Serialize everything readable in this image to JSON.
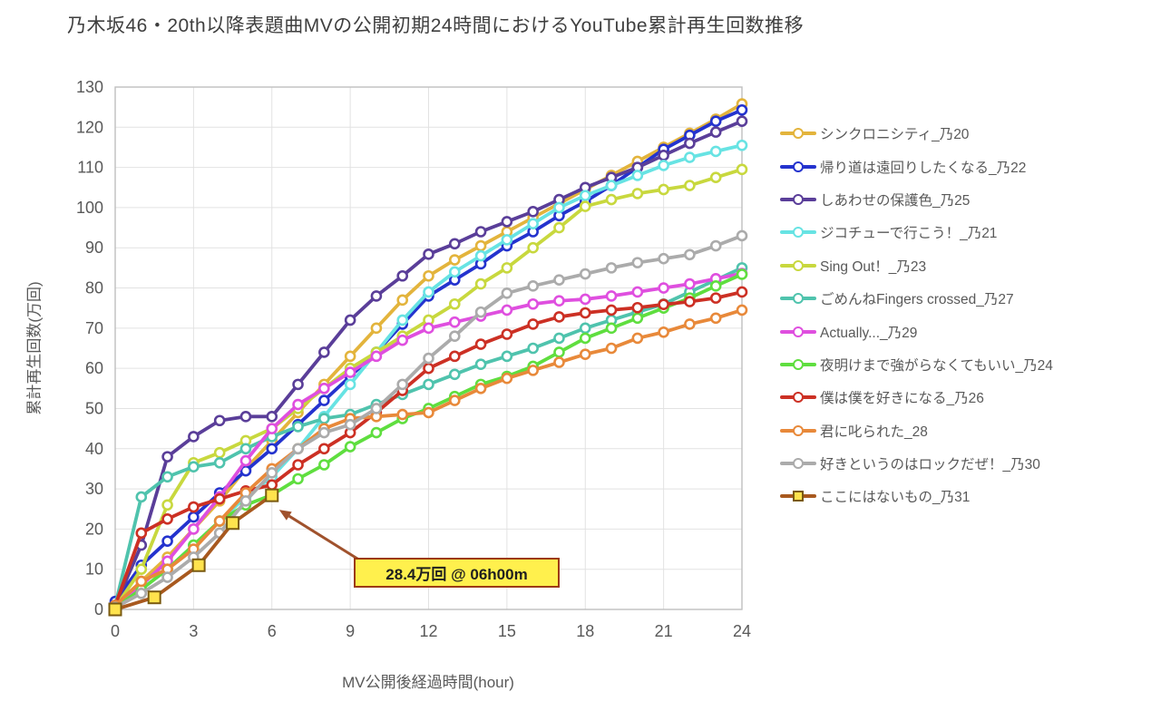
{
  "title": "乃木坂46・20th以降表題曲MVの公開初期24時間におけるYouTube累計再生回数推移",
  "colors": {
    "grid": "#e2e2e2",
    "axis_border": "#bfbfbf",
    "tick_text": "#595959",
    "title_text": "#3f3f3f",
    "annotation_bg": "#fff04d",
    "annotation_border": "#9c3a12",
    "arrow": "#a0522d",
    "square_marker_fill": "#ffe34d",
    "square_marker_stroke": "#7a5a10"
  },
  "chart_data": {
    "type": "line",
    "title": "乃木坂46・20th以降表題曲MVの公開初期24時間におけるYouTube累計再生回数推移",
    "xlabel": "MV公開後経過時間(hour)",
    "ylabel": "累計再生回数(万回)",
    "xlim": [
      0,
      24
    ],
    "ylim": [
      0,
      130
    ],
    "xticks": [
      0,
      3,
      6,
      9,
      12,
      15,
      18,
      21,
      24
    ],
    "yticks": [
      0,
      10,
      20,
      30,
      40,
      50,
      60,
      70,
      80,
      90,
      100,
      110,
      120,
      130
    ],
    "grid": true,
    "legend_position": "right",
    "annotation": {
      "text": "28.4万回 @ 06h00m",
      "target_x": 6,
      "target_y": 28.4
    },
    "series": [
      {
        "name": "シンクロニシティ_乃20",
        "color": "#e3b43c",
        "marker": "circle",
        "values": [
          1,
          7,
          13,
          20,
          27,
          35,
          42,
          49,
          56,
          63,
          70,
          77,
          83,
          87,
          90.5,
          94,
          97.5,
          101,
          104.5,
          108,
          111.5,
          115,
          118.5,
          122,
          125.8
        ]
      },
      {
        "name": "帰り道は遠回りしたくなる_乃22",
        "color": "#2433ce",
        "marker": "circle",
        "values": [
          2,
          11,
          17,
          23,
          29,
          34.5,
          40,
          46,
          52,
          58,
          64,
          71,
          78,
          82,
          86,
          90.5,
          94,
          98,
          101.5,
          105.5,
          110,
          114.5,
          118,
          121.5,
          124.3
        ]
      },
      {
        "name": "しあわせの保護色_乃25",
        "color": "#5a3e99",
        "marker": "circle",
        "values": [
          1,
          16,
          38,
          43,
          47,
          48,
          48,
          56,
          64,
          72,
          78,
          83,
          88.4,
          91,
          94,
          96.5,
          99,
          102,
          105,
          107.5,
          110,
          113,
          116,
          118.8,
          121.5
        ]
      },
      {
        "name": "ジコチューで行こう！_乃21",
        "color": "#67e3e3",
        "marker": "circle",
        "values": [
          1,
          5,
          10,
          16,
          22,
          28,
          33,
          40,
          48,
          56,
          64,
          72,
          79,
          84,
          88,
          92,
          96,
          100,
          103,
          105.5,
          108,
          110.5,
          112.5,
          114,
          115.5
        ]
      },
      {
        "name": "Sing Out！_乃23",
        "color": "#c8d83e",
        "marker": "circle",
        "values": [
          0.5,
          10,
          26,
          36.5,
          39,
          42,
          45,
          50,
          55,
          60,
          64,
          68,
          72,
          76,
          81,
          85,
          90,
          95,
          100.3,
          102,
          103.5,
          104.5,
          105.5,
          107.5,
          109.5
        ]
      },
      {
        "name": "ごめんねFingers crossed_乃27",
        "color": "#4fc3ad",
        "marker": "circle",
        "values": [
          1,
          28,
          33,
          35.5,
          36.5,
          40,
          43,
          45.5,
          47.5,
          48.5,
          51,
          53.5,
          56,
          58.5,
          61,
          63,
          65,
          67.5,
          70,
          72,
          74,
          76,
          79,
          82,
          85
        ]
      },
      {
        "name": "Actually..._乃29",
        "color": "#df4fdf",
        "marker": "circle",
        "values": [
          1,
          6,
          12,
          20,
          28,
          37,
          45,
          51,
          55,
          59,
          63,
          67,
          70,
          71.5,
          73,
          74.5,
          76,
          76.8,
          77.2,
          78,
          79,
          80,
          81,
          82.3,
          83.6
        ]
      },
      {
        "name": "夜明けまで強がらなくてもいい_乃24",
        "color": "#5fde3f",
        "marker": "circle",
        "values": [
          0.5,
          5,
          10,
          16,
          22,
          26,
          28.5,
          32.5,
          36,
          40.5,
          44,
          47.5,
          50,
          53,
          56,
          58,
          60.5,
          64,
          67.5,
          70,
          72.5,
          75,
          77.5,
          80.5,
          83.4
        ]
      },
      {
        "name": "僕は僕を好きになる_乃26",
        "color": "#cc3024",
        "marker": "circle",
        "values": [
          1,
          19,
          22.5,
          25.5,
          27.5,
          29.5,
          31,
          36,
          40,
          44,
          49,
          54.5,
          60,
          63,
          66,
          68.5,
          71,
          72.8,
          73.8,
          74.5,
          75.1,
          75.9,
          76.6,
          77.5,
          79
        ]
      },
      {
        "name": "君に叱られた_28",
        "color": "#e8893a",
        "marker": "circle",
        "values": [
          1,
          7,
          10,
          15,
          22,
          29,
          35,
          40,
          45,
          47.5,
          48,
          48.5,
          49,
          52,
          55,
          57.5,
          59.5,
          61.5,
          63.5,
          65,
          67.5,
          69,
          71,
          72.5,
          74.5
        ]
      },
      {
        "name": "好きというのはロックだぜ！_乃30",
        "color": "#ababab",
        "marker": "circle",
        "values": [
          0.5,
          4,
          8,
          13,
          19,
          27,
          34,
          40,
          44,
          46,
          50,
          56,
          62.5,
          68,
          74,
          78.7,
          80.5,
          82,
          83.5,
          85,
          86.3,
          87.3,
          88.3,
          90.5,
          93
        ]
      },
      {
        "name": "ここにはないもの_乃31",
        "color": "#a8591f",
        "marker": "square",
        "x": [
          0,
          1.5,
          3.2,
          4.5,
          6
        ],
        "values": [
          0,
          3,
          11,
          21.5,
          28.4
        ]
      }
    ]
  }
}
